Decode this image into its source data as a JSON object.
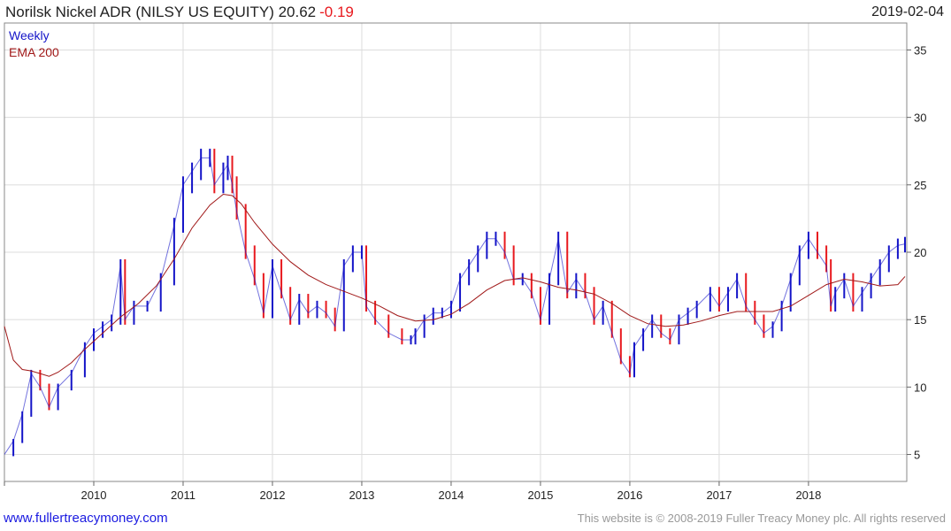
{
  "header": {
    "title": "Norilsk Nickel ADR (NILSY US EQUITY) 20.62",
    "change": "-0.19",
    "date": "2019-02-04"
  },
  "footer": {
    "site": "www.fullertreacymoney.com",
    "copyright": "This website is © 2008-2019 Fuller Treacy Money plc. All rights reserved"
  },
  "colors": {
    "up": "#1414c8",
    "down": "#e8191e",
    "ema": "#a01818",
    "grid": "#dcdcdc"
  },
  "chart_data": {
    "type": "line",
    "title": "Norilsk Nickel ADR (NILSY US EQUITY) 20.62",
    "legend": [
      "Weekly",
      "EMA 200"
    ],
    "legend_position": "top-left",
    "y_axis_side": "right",
    "ylim": [
      3,
      37
    ],
    "yticks": [
      5,
      10,
      15,
      20,
      25,
      30,
      35
    ],
    "xlim": [
      2009.0,
      2019.1
    ],
    "xticks": [
      "2010",
      "2011",
      "2012",
      "2013",
      "2014",
      "2015",
      "2016",
      "2017",
      "2018"
    ],
    "grid": true,
    "series": [
      {
        "name": "Weekly",
        "x": [
          2009.0,
          2009.1,
          2009.2,
          2009.3,
          2009.4,
          2009.5,
          2009.6,
          2009.75,
          2009.9,
          2010.0,
          2010.1,
          2010.2,
          2010.3,
          2010.35,
          2010.45,
          2010.6,
          2010.75,
          2010.9,
          2011.0,
          2011.1,
          2011.2,
          2011.3,
          2011.35,
          2011.45,
          2011.5,
          2011.55,
          2011.6,
          2011.7,
          2011.8,
          2011.9,
          2012.0,
          2012.1,
          2012.2,
          2012.3,
          2012.4,
          2012.5,
          2012.6,
          2012.7,
          2012.8,
          2012.9,
          2013.0,
          2013.05,
          2013.15,
          2013.3,
          2013.45,
          2013.55,
          2013.6,
          2013.7,
          2013.8,
          2013.9,
          2014.0,
          2014.1,
          2014.2,
          2014.3,
          2014.4,
          2014.5,
          2014.6,
          2014.7,
          2014.8,
          2014.9,
          2015.0,
          2015.1,
          2015.2,
          2015.3,
          2015.4,
          2015.5,
          2015.6,
          2015.7,
          2015.8,
          2015.9,
          2016.0,
          2016.05,
          2016.15,
          2016.25,
          2016.35,
          2016.45,
          2016.55,
          2016.65,
          2016.75,
          2016.9,
          2017.0,
          2017.1,
          2017.2,
          2017.3,
          2017.4,
          2017.5,
          2017.6,
          2017.7,
          2017.8,
          2017.9,
          2018.0,
          2018.1,
          2018.2,
          2018.25,
          2018.3,
          2018.4,
          2018.5,
          2018.6,
          2018.7,
          2018.8,
          2018.9,
          2019.0,
          2019.08
        ],
        "values": [
          5,
          6,
          8,
          11,
          10,
          8.5,
          10,
          11,
          13,
          14,
          14.5,
          15,
          19,
          15,
          16,
          16,
          18,
          22,
          25,
          26,
          27,
          27,
          25,
          26,
          26.5,
          25,
          23,
          20,
          18,
          15.5,
          19,
          17,
          15,
          16.5,
          15.5,
          16,
          15.5,
          14.5,
          19,
          20,
          20,
          16,
          15,
          14,
          13.5,
          13.5,
          14,
          15,
          15.5,
          15.5,
          16,
          18,
          19,
          20,
          21,
          21,
          20,
          18,
          18,
          17,
          15,
          18,
          21,
          17,
          18,
          17,
          15,
          16,
          14,
          12,
          11,
          13,
          14,
          15,
          14,
          13.5,
          15,
          15.5,
          16,
          17,
          16,
          17,
          18,
          16,
          15,
          14,
          14.5,
          16,
          18,
          20,
          21,
          20,
          19,
          16,
          17,
          18,
          16,
          17,
          18,
          19,
          20,
          20.5,
          20.62
        ]
      },
      {
        "name": "EMA 200",
        "x": [
          2009.0,
          2009.1,
          2009.2,
          2009.3,
          2009.4,
          2009.5,
          2009.6,
          2009.75,
          2009.9,
          2010.1,
          2010.3,
          2010.5,
          2010.7,
          2010.9,
          2011.1,
          2011.3,
          2011.45,
          2011.55,
          2011.65,
          2011.8,
          2012.0,
          2012.2,
          2012.4,
          2012.6,
          2012.8,
          2013.0,
          2013.2,
          2013.4,
          2013.6,
          2013.8,
          2014.0,
          2014.2,
          2014.4,
          2014.6,
          2014.8,
          2015.0,
          2015.2,
          2015.4,
          2015.6,
          2015.8,
          2016.0,
          2016.2,
          2016.4,
          2016.6,
          2016.8,
          2017.0,
          2017.2,
          2017.4,
          2017.6,
          2017.8,
          2018.0,
          2018.2,
          2018.4,
          2018.6,
          2018.8,
          2019.0,
          2019.08
        ],
        "values": [
          14.5,
          12,
          11.3,
          11.2,
          11.0,
          10.8,
          11.1,
          11.8,
          12.8,
          14,
          15.2,
          16.2,
          17.5,
          19.5,
          21.8,
          23.5,
          24.3,
          24.2,
          23.6,
          22.2,
          20.6,
          19.3,
          18.3,
          17.6,
          17.1,
          16.6,
          16.0,
          15.3,
          14.9,
          15.0,
          15.4,
          16.2,
          17.2,
          17.9,
          18.1,
          17.8,
          17.4,
          17.2,
          16.9,
          16.2,
          15.3,
          14.7,
          14.5,
          14.6,
          14.9,
          15.3,
          15.6,
          15.6,
          15.6,
          16.0,
          16.8,
          17.6,
          18.0,
          17.8,
          17.5,
          17.6,
          18.2
        ]
      }
    ]
  }
}
